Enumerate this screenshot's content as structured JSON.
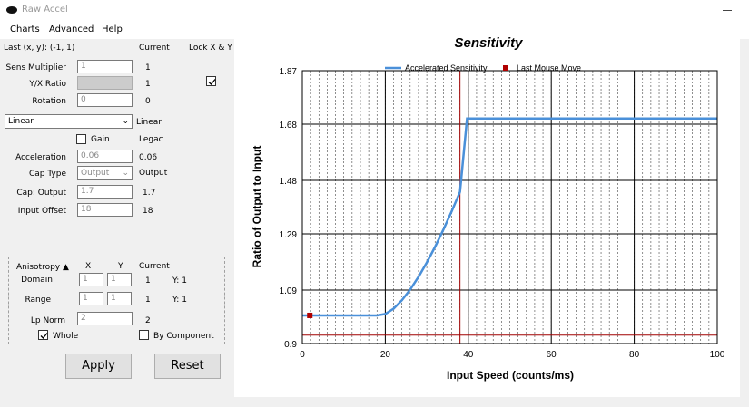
{
  "window": {
    "title": "Raw Accel"
  },
  "menu": [
    "Charts",
    "Advanced",
    "Help"
  ],
  "header": {
    "last_xy": "Last (x, y): (-1, 1)",
    "current": "Current",
    "lock_xy": "Lock X & Y",
    "lock_checked": true
  },
  "fields": {
    "sens_multiplier": {
      "label": "Sens Multiplier",
      "value": "1",
      "current": "1"
    },
    "yx_ratio": {
      "label": "Y/X Ratio",
      "value": "",
      "current": "1"
    },
    "rotation": {
      "label": "Rotation",
      "value": "0",
      "current": "0"
    },
    "mode": {
      "value": "Linear",
      "current": "Linear"
    },
    "gain": {
      "label": "Gain",
      "checked": false,
      "current": "Legac"
    },
    "acceleration": {
      "label": "Acceleration",
      "value": "0.06",
      "current": "0.06"
    },
    "cap_type": {
      "label": "Cap Type",
      "value": "Output",
      "current": "Output"
    },
    "cap_output": {
      "label": "Cap: Output",
      "value": "1.7",
      "current": "1.7"
    },
    "input_offset": {
      "label": "Input Offset",
      "value": "18",
      "current": "18"
    }
  },
  "anisotropy": {
    "title": "Anisotropy ▲",
    "col_x": "X",
    "col_y": "Y",
    "col_current": "Current",
    "domain": {
      "label": "Domain",
      "x": "1",
      "y": "1",
      "current": "1",
      "current_y": "Y: 1"
    },
    "range": {
      "label": "Range",
      "x": "1",
      "y": "1",
      "current": "1",
      "current_y": "Y: 1"
    },
    "lp_norm": {
      "label": "Lp Norm",
      "value": "2",
      "current": "2"
    },
    "whole": {
      "label": "Whole",
      "checked": true
    },
    "by_component": {
      "label": "By Component",
      "checked": false
    }
  },
  "buttons": {
    "apply": "Apply",
    "reset": "Reset"
  },
  "colors": {
    "series": "#4a90d9",
    "marker": "#b00000",
    "vline": "#a00000"
  },
  "chart_data": {
    "type": "line",
    "title": "Sensitivity",
    "xlabel": "Input Speed (counts/ms)",
    "ylabel": "Ratio of Output to Input",
    "xlim": [
      0,
      100
    ],
    "ylim": [
      0.9,
      1.87
    ],
    "x_ticks": [
      "0",
      "20",
      "40",
      "60",
      "80",
      "100"
    ],
    "y_ticks": [
      "0.9",
      "1.09",
      "1.29",
      "1.48",
      "1.68",
      "1.87"
    ],
    "x_tick_values": [
      0,
      20,
      40,
      60,
      80,
      100
    ],
    "y_tick_values": [
      0.9,
      1.09,
      1.29,
      1.48,
      1.68,
      1.87
    ],
    "legend": [
      "Accelerated Sensitivity",
      "Last Mouse Move"
    ],
    "legend_position": "top",
    "grid": true,
    "series": [
      {
        "name": "Accelerated Sensitivity",
        "x": [
          0,
          18,
          20,
          22,
          24,
          26,
          28,
          30,
          32,
          34,
          36,
          38,
          39.7,
          45,
          60,
          80,
          100
        ],
        "y": [
          1.0,
          1.0,
          1.005,
          1.024,
          1.054,
          1.092,
          1.137,
          1.188,
          1.244,
          1.305,
          1.37,
          1.439,
          1.7,
          1.7,
          1.7,
          1.7,
          1.7
        ]
      },
      {
        "name": "Last Mouse Move",
        "x": [
          1.8
        ],
        "y": [
          1.0
        ]
      }
    ],
    "hline_y": 0.93,
    "vline_x": 38.0
  }
}
